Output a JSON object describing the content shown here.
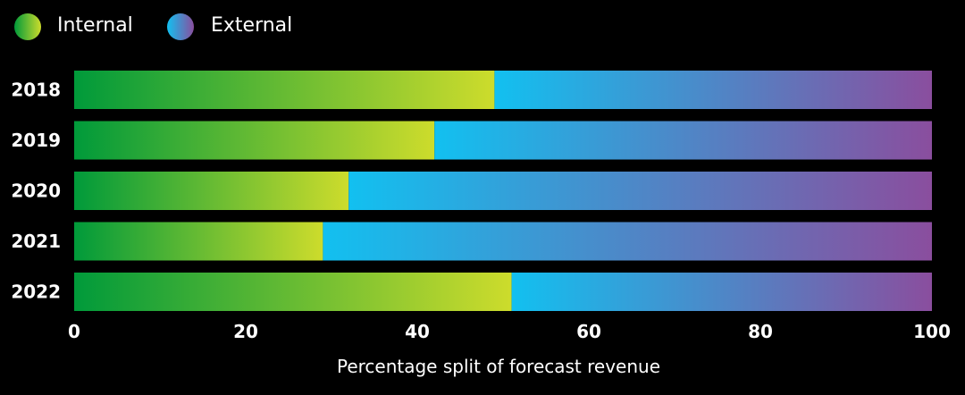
{
  "chart_data": {
    "type": "bar",
    "orientation": "horizontal",
    "stacked": true,
    "categories": [
      "2018",
      "2019",
      "2020",
      "2021",
      "2022"
    ],
    "series": [
      {
        "name": "Internal",
        "values": [
          49,
          42,
          32,
          29,
          51
        ]
      },
      {
        "name": "External",
        "values": [
          51,
          58,
          68,
          71,
          49
        ]
      }
    ],
    "xlabel": "Percentage split of forecast revenue",
    "ylabel": "",
    "xlim": [
      0,
      100
    ],
    "xticks": [
      "0",
      "20",
      "40",
      "60",
      "80",
      "100"
    ],
    "legend_position": "top-left",
    "grid": false,
    "colors": {
      "background": "#000000",
      "internal_start": "#009a3a",
      "internal_end": "#cddc2c",
      "external_start": "#12c0f0",
      "external_end": "#8a4e9e"
    }
  }
}
